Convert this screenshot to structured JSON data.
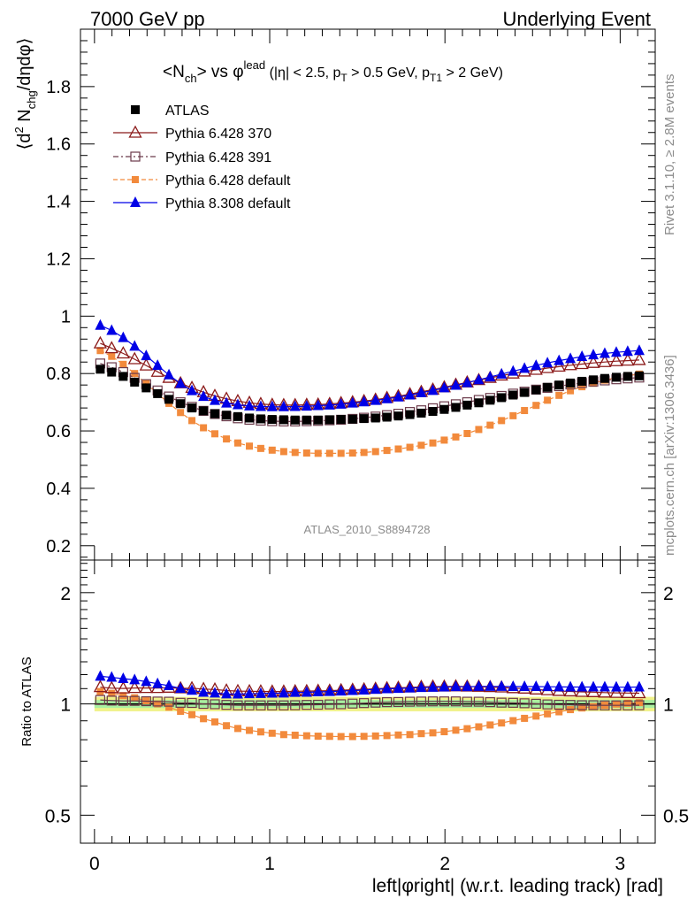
{
  "header": {
    "left": "7000 GeV pp",
    "right": "Underlying Event"
  },
  "title": {
    "main": "<N",
    "sub1": "ch",
    "mid": "> vs φ",
    "sup1": "lead",
    "cuts_a": " (|η| < 2.5, p",
    "sub2": "T",
    "cuts_b": " > 0.5 GeV, p",
    "sub3": "T1",
    "cuts_c": " > 2 GeV)"
  },
  "side_text": {
    "rivet": "Rivet 3.1.10, ≥ 2.8M events",
    "mcplots": "mcplots.cern.ch [arXiv:1306.3436]"
  },
  "analysis_tag": "ATLAS_2010_S8894728",
  "xlabel": "left|φright| (w.r.t. leading track) [rad]",
  "ylabel_parts": {
    "open": "⟨d",
    "sup": "2",
    "n": " N",
    "sub": "chg",
    "rest": "/dηdφ⟩"
  },
  "ratio_ylabel": "Ratio to ATLAS",
  "colors": {
    "atlas": "#000000",
    "p370": "#8b1a1a",
    "p391": "#6b3a4a",
    "p6def": "#f28a3c",
    "p8def": "#0000e6",
    "band_green": "#a9f0a0",
    "band_yellow": "#f0f28a"
  },
  "chart_data": [
    {
      "type": "scatter",
      "title": "",
      "xlabel": "left|φright| (w.r.t. leading track) [rad]",
      "ylabel": "⟨d2 Nchg/dηdφ⟩",
      "xlim": [
        -0.08,
        3.2
      ],
      "ylim": [
        0.15,
        2.0
      ],
      "xticks": [
        "0",
        "1",
        "2",
        "3"
      ],
      "yticks": [
        "0.2",
        "0.4",
        "0.6",
        "0.8",
        "1",
        "1.2",
        "1.4",
        "1.6",
        "1.8"
      ],
      "legend_position": "top-left",
      "x": [
        0.033,
        0.098,
        0.164,
        0.229,
        0.295,
        0.36,
        0.425,
        0.491,
        0.556,
        0.622,
        0.687,
        0.753,
        0.818,
        0.884,
        0.949,
        1.014,
        1.08,
        1.145,
        1.211,
        1.276,
        1.342,
        1.407,
        1.473,
        1.538,
        1.604,
        1.669,
        1.734,
        1.8,
        1.865,
        1.931,
        1.996,
        2.062,
        2.127,
        2.193,
        2.258,
        2.323,
        2.389,
        2.454,
        2.52,
        2.585,
        2.651,
        2.716,
        2.782,
        2.847,
        2.912,
        2.978,
        3.043,
        3.109
      ],
      "series": [
        {
          "name": "ATLAS",
          "marker": "square-filled",
          "values": [
            0.815,
            0.805,
            0.79,
            0.77,
            0.75,
            0.73,
            0.71,
            0.695,
            0.68,
            0.67,
            0.66,
            0.655,
            0.65,
            0.645,
            0.642,
            0.64,
            0.639,
            0.638,
            0.638,
            0.638,
            0.639,
            0.64,
            0.641,
            0.643,
            0.645,
            0.648,
            0.652,
            0.657,
            0.662,
            0.668,
            0.675,
            0.682,
            0.69,
            0.698,
            0.707,
            0.716,
            0.725,
            0.734,
            0.743,
            0.752,
            0.76,
            0.767,
            0.773,
            0.778,
            0.783,
            0.787,
            0.79,
            0.792
          ]
        },
        {
          "name": "Pythia 6.428 370",
          "marker": "triangle-open",
          "values": [
            0.905,
            0.888,
            0.87,
            0.85,
            0.828,
            0.806,
            0.785,
            0.766,
            0.75,
            0.735,
            0.722,
            0.712,
            0.704,
            0.698,
            0.694,
            0.691,
            0.69,
            0.69,
            0.691,
            0.692,
            0.694,
            0.697,
            0.7,
            0.704,
            0.709,
            0.715,
            0.721,
            0.728,
            0.736,
            0.744,
            0.752,
            0.761,
            0.769,
            0.777,
            0.785,
            0.793,
            0.8,
            0.807,
            0.813,
            0.819,
            0.824,
            0.829,
            0.833,
            0.837,
            0.84,
            0.843,
            0.845,
            0.847
          ]
        },
        {
          "name": "Pythia 6.428 391",
          "marker": "square-open",
          "values": [
            0.835,
            0.822,
            0.805,
            0.785,
            0.763,
            0.741,
            0.72,
            0.7,
            0.684,
            0.67,
            0.659,
            0.651,
            0.644,
            0.639,
            0.636,
            0.634,
            0.633,
            0.633,
            0.634,
            0.635,
            0.637,
            0.639,
            0.642,
            0.646,
            0.65,
            0.655,
            0.66,
            0.666,
            0.672,
            0.679,
            0.686,
            0.693,
            0.7,
            0.708,
            0.715,
            0.722,
            0.73,
            0.737,
            0.744,
            0.75,
            0.756,
            0.762,
            0.767,
            0.772,
            0.776,
            0.78,
            0.783,
            0.786
          ]
        },
        {
          "name": "Pythia 6.428 default",
          "marker": "square-small",
          "values": [
            0.88,
            0.86,
            0.832,
            0.8,
            0.765,
            0.73,
            0.696,
            0.664,
            0.636,
            0.611,
            0.59,
            0.572,
            0.558,
            0.547,
            0.539,
            0.533,
            0.528,
            0.525,
            0.523,
            0.522,
            0.522,
            0.522,
            0.523,
            0.525,
            0.528,
            0.532,
            0.537,
            0.543,
            0.55,
            0.558,
            0.568,
            0.579,
            0.591,
            0.605,
            0.62,
            0.636,
            0.653,
            0.671,
            0.689,
            0.707,
            0.724,
            0.74,
            0.754,
            0.766,
            0.777,
            0.786,
            0.793,
            0.798
          ]
        },
        {
          "name": "Pythia 8.308 default",
          "marker": "triangle-filled",
          "values": [
            0.968,
            0.95,
            0.925,
            0.895,
            0.862,
            0.828,
            0.795,
            0.765,
            0.74,
            0.72,
            0.706,
            0.697,
            0.691,
            0.687,
            0.685,
            0.684,
            0.684,
            0.685,
            0.686,
            0.688,
            0.69,
            0.693,
            0.697,
            0.701,
            0.706,
            0.712,
            0.718,
            0.725,
            0.733,
            0.741,
            0.75,
            0.759,
            0.768,
            0.778,
            0.788,
            0.798,
            0.808,
            0.818,
            0.828,
            0.837,
            0.845,
            0.852,
            0.859,
            0.865,
            0.87,
            0.874,
            0.877,
            0.88
          ]
        }
      ]
    },
    {
      "type": "scatter",
      "title": "",
      "xlabel": "left|φright| (w.r.t. leading track) [rad]",
      "ylabel": "Ratio to ATLAS",
      "xlim": [
        -0.08,
        3.2
      ],
      "ylim": [
        0.42,
        2.45
      ],
      "yscale": "log",
      "xticks": [
        "0",
        "1",
        "2",
        "3"
      ],
      "yticks": [
        "0.5",
        "1",
        "2"
      ],
      "band": {
        "green_rel": 0.025,
        "yellow_rel": 0.045
      },
      "series": [
        {
          "name": "Pythia 6.428 370",
          "values": [
            1.11,
            1.103,
            1.101,
            1.104,
            1.104,
            1.104,
            1.106,
            1.102,
            1.103,
            1.097,
            1.094,
            1.087,
            1.083,
            1.082,
            1.081,
            1.08,
            1.08,
            1.082,
            1.083,
            1.085,
            1.086,
            1.089,
            1.092,
            1.095,
            1.099,
            1.103,
            1.106,
            1.108,
            1.112,
            1.114,
            1.114,
            1.116,
            1.114,
            1.113,
            1.11,
            1.108,
            1.103,
            1.1,
            1.094,
            1.089,
            1.084,
            1.081,
            1.078,
            1.076,
            1.073,
            1.071,
            1.07,
            1.069
          ]
        },
        {
          "name": "Pythia 6.428 391",
          "values": [
            1.025,
            1.021,
            1.019,
            1.019,
            1.017,
            1.015,
            1.014,
            1.007,
            1.006,
            1.0,
            0.998,
            0.994,
            0.991,
            0.991,
            0.991,
            0.991,
            0.991,
            0.992,
            0.994,
            0.995,
            0.997,
            0.998,
            1.002,
            1.005,
            1.008,
            1.011,
            1.012,
            1.014,
            1.015,
            1.016,
            1.016,
            1.016,
            1.014,
            1.014,
            1.011,
            1.008,
            1.007,
            1.004,
            1.001,
            0.997,
            0.995,
            0.994,
            0.992,
            0.992,
            0.991,
            0.991,
            0.991,
            0.992
          ]
        },
        {
          "name": "Pythia 6.428 default",
          "values": [
            1.08,
            1.068,
            1.053,
            1.039,
            1.02,
            1.0,
            0.98,
            0.955,
            0.935,
            0.912,
            0.894,
            0.873,
            0.858,
            0.848,
            0.84,
            0.833,
            0.826,
            0.823,
            0.82,
            0.818,
            0.817,
            0.816,
            0.816,
            0.817,
            0.819,
            0.821,
            0.824,
            0.826,
            0.831,
            0.835,
            0.841,
            0.849,
            0.857,
            0.867,
            0.877,
            0.888,
            0.901,
            0.914,
            0.927,
            0.94,
            0.952,
            0.965,
            0.975,
            0.984,
            0.992,
            0.999,
            1.004,
            1.008
          ]
        },
        {
          "name": "Pythia 8.308 default",
          "values": [
            1.188,
            1.18,
            1.171,
            1.162,
            1.149,
            1.134,
            1.12,
            1.101,
            1.088,
            1.075,
            1.07,
            1.064,
            1.063,
            1.065,
            1.067,
            1.069,
            1.07,
            1.074,
            1.075,
            1.078,
            1.08,
            1.083,
            1.087,
            1.09,
            1.095,
            1.099,
            1.101,
            1.104,
            1.107,
            1.109,
            1.111,
            1.113,
            1.113,
            1.115,
            1.115,
            1.115,
            1.114,
            1.114,
            1.114,
            1.113,
            1.112,
            1.111,
            1.111,
            1.111,
            1.111,
            1.11,
            1.11,
            1.111
          ]
        }
      ]
    }
  ]
}
